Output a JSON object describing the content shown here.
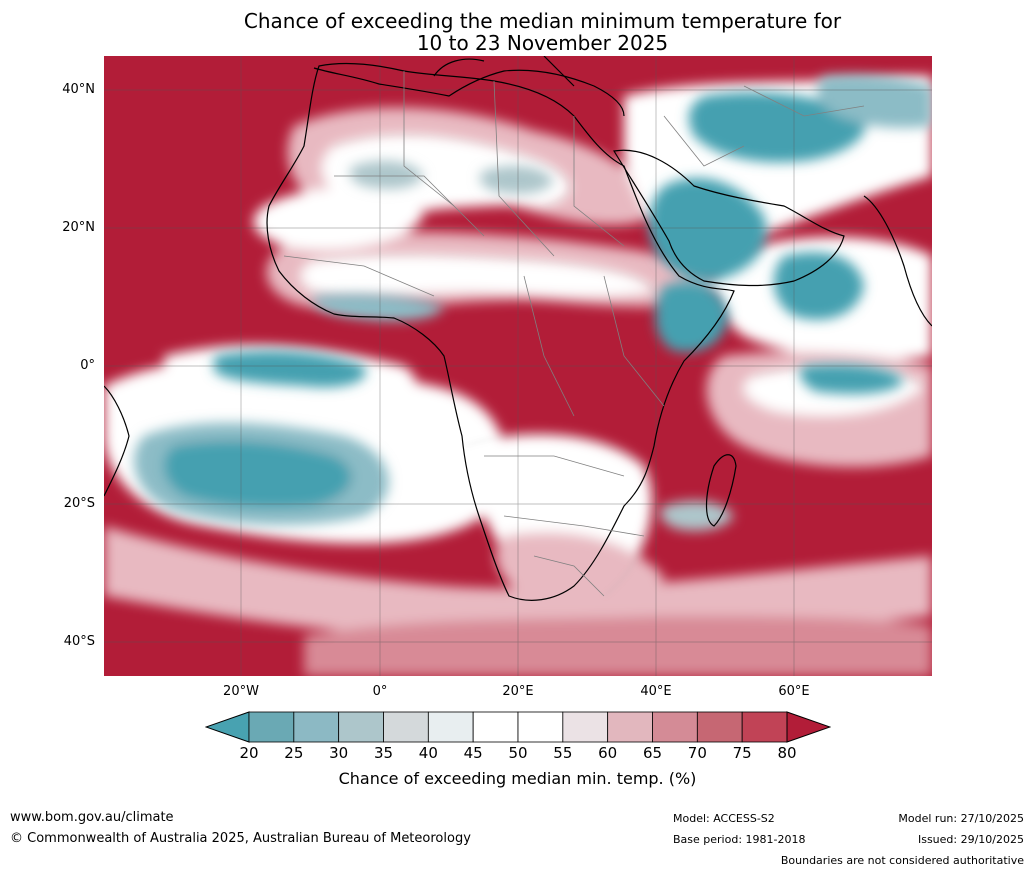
{
  "title": {
    "line1": "Chance of exceeding the median minimum temperature for",
    "line2": "10 to 23 November 2025"
  },
  "map": {
    "lat_labels": [
      "40°N",
      "20°N",
      "0°",
      "20°S",
      "40°S"
    ],
    "lon_labels": [
      "20°W",
      "0°",
      "20°E",
      "40°E",
      "60°E"
    ],
    "colors": {
      "very_high": "#b21d38",
      "high": "#c44b5e",
      "mid_high": "#d88a96",
      "pale_high": "#e8b9c1",
      "neutral": "#ffffff",
      "pale_low": "#cfdde0",
      "mid_low": "#8cbcc6",
      "low": "#45a0b0",
      "land_outline": "#000000",
      "boundary": "#808080"
    }
  },
  "colorbar": {
    "ticks": [
      "20",
      "25",
      "30",
      "35",
      "40",
      "45",
      "50",
      "55",
      "60",
      "65",
      "70",
      "75",
      "80"
    ],
    "colors": [
      "#48a2b1",
      "#6aa9b4",
      "#8cb9c4",
      "#adc6cb",
      "#d4d9db",
      "#e8eef0",
      "#ffffff",
      "#ffffff",
      "#ebe2e5",
      "#e2b7be",
      "#d48b96",
      "#c66773",
      "#c14356",
      "#b21d38"
    ],
    "label": "Chance of exceeding median min. temp. (%)"
  },
  "footer": {
    "website": "www.bom.gov.au/climate",
    "copyright": "© Commonwealth of Australia 2025, Australian Bureau of Meteorology",
    "model": "Model: ACCESS-S2",
    "base_period": "Base period: 1981-2018",
    "model_run": "Model run: 27/10/2025",
    "issued": "Issued: 29/10/2025",
    "disclaimer": "Boundaries are not considered authoritative"
  }
}
